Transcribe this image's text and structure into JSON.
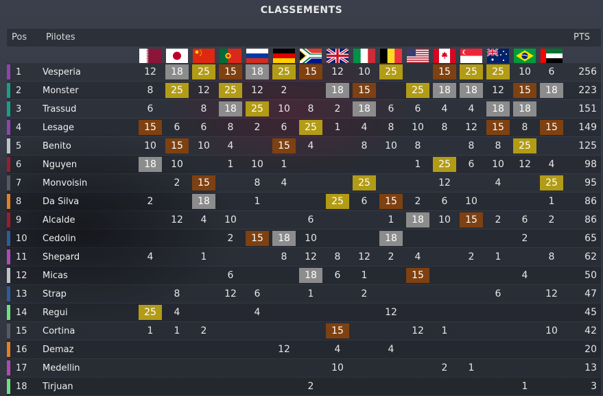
{
  "title": "CLASSEMENTS",
  "headers": {
    "pos": "Pos",
    "driver": "Pilotes",
    "points": "PTS"
  },
  "colors": {
    "gold": "#b29c16",
    "silver": "#8c8c8c",
    "bronze": "#7e4111"
  },
  "flags": [
    "qatar-flag-icon",
    "japan-flag-icon",
    "china-flag-icon",
    "portugal-flag-icon",
    "russia-flag-icon",
    "germany-flag-icon",
    "south-africa-flag-icon",
    "uk-flag-icon",
    "italy-flag-icon",
    "belgium-flag-icon",
    "usa-flag-icon",
    "canada-flag-icon",
    "singapore-flag-icon",
    "australia-flag-icon",
    "brazil-flag-icon",
    "uae-flag-icon"
  ],
  "rows": [
    {
      "pos": "1",
      "name": "Vesperia",
      "team_color": "#8e44ad",
      "pts": "256",
      "results": [
        "12",
        "18",
        "25",
        "15",
        "18",
        "25",
        "15",
        "12",
        "10",
        "25",
        "",
        "15",
        "25",
        "25",
        "10",
        "6"
      ]
    },
    {
      "pos": "2",
      "name": "Monster",
      "team_color": "#16a085",
      "pts": "223",
      "results": [
        "8",
        "25",
        "12",
        "25",
        "12",
        "2",
        "",
        "18",
        "15",
        "",
        "25",
        "18",
        "18",
        "12",
        "15",
        "18"
      ]
    },
    {
      "pos": "3",
      "name": "Trassud",
      "team_color": "#16a085",
      "pts": "151",
      "results": [
        "6",
        "",
        "8",
        "18",
        "25",
        "10",
        "8",
        "2",
        "18",
        "6",
        "6",
        "4",
        "4",
        "18",
        "18",
        ""
      ]
    },
    {
      "pos": "4",
      "name": "Lesage",
      "team_color": "#8e44ad",
      "pts": "149",
      "results": [
        "15",
        "6",
        "6",
        "8",
        "2",
        "6",
        "25",
        "1",
        "4",
        "8",
        "10",
        "8",
        "12",
        "15",
        "8",
        "15"
      ]
    },
    {
      "pos": "5",
      "name": "Benito",
      "team_color": "#bdc3c7",
      "pts": "125",
      "results": [
        "10",
        "15",
        "10",
        "4",
        "",
        "15",
        "4",
        "",
        "8",
        "10",
        "8",
        "",
        "8",
        "8",
        "25",
        ""
      ]
    },
    {
      "pos": "6",
      "name": "Nguyen",
      "team_color": "#9b1c2e",
      "pts": "98",
      "results": [
        "18",
        "10",
        "",
        "1",
        "10",
        "1",
        "",
        "",
        "",
        "",
        "1",
        "25",
        "6",
        "10",
        "12",
        "4"
      ]
    },
    {
      "pos": "7",
      "name": "Monvoisin",
      "team_color": "#555a60",
      "pts": "95",
      "results": [
        "",
        "2",
        "15",
        "",
        "8",
        "4",
        "",
        "",
        "25",
        "",
        "",
        "12",
        "",
        "4",
        "",
        "25"
      ]
    },
    {
      "pos": "8",
      "name": "Da Silva",
      "team_color": "#e67e22",
      "pts": "86",
      "results": [
        "2",
        "",
        "18",
        "",
        "1",
        "",
        "",
        "25",
        "6",
        "15",
        "2",
        "6",
        "10",
        "",
        "",
        "1"
      ]
    },
    {
      "pos": "9",
      "name": "Alcalde",
      "team_color": "#9b1c2e",
      "pts": "86",
      "results": [
        "",
        "12",
        "4",
        "10",
        "",
        "",
        "6",
        "",
        "",
        "1",
        "18",
        "10",
        "15",
        "2",
        "6",
        "2"
      ]
    },
    {
      "pos": "10",
      "name": "Cedolin",
      "team_color": "#2e5c9a",
      "pts": "65",
      "results": [
        "",
        "",
        "",
        "2",
        "15",
        "18",
        "10",
        "",
        "",
        "18",
        "",
        "",
        "",
        "",
        "2",
        ""
      ]
    },
    {
      "pos": "11",
      "name": "Shepard",
      "team_color": "#b04ab0",
      "pts": "62",
      "results": [
        "4",
        "",
        "1",
        "",
        "",
        "8",
        "12",
        "8",
        "12",
        "2",
        "4",
        "",
        "2",
        "1",
        "",
        "8"
      ]
    },
    {
      "pos": "12",
      "name": "Micas",
      "team_color": "#bdc3c7",
      "pts": "50",
      "results": [
        "",
        "",
        "",
        "6",
        "",
        "",
        "18",
        "6",
        "1",
        "",
        "15",
        "",
        "",
        "",
        "4",
        ""
      ]
    },
    {
      "pos": "13",
      "name": "Strap",
      "team_color": "#2e5c9a",
      "pts": "47",
      "results": [
        "",
        "8",
        "",
        "12",
        "6",
        "",
        "1",
        "",
        "2",
        "",
        "",
        "",
        "",
        "6",
        "",
        "12"
      ]
    },
    {
      "pos": "14",
      "name": "Regui",
      "team_color": "#6fe07f",
      "pts": "45",
      "results": [
        "25",
        "4",
        "",
        "",
        "4",
        "",
        "",
        "",
        "",
        "12",
        "",
        "",
        "",
        "",
        "",
        ""
      ]
    },
    {
      "pos": "15",
      "name": "Cortina",
      "team_color": "#555a60",
      "pts": "42",
      "results": [
        "1",
        "1",
        "2",
        "",
        "",
        "",
        "",
        "15",
        "",
        "",
        "12",
        "1",
        "",
        "",
        "",
        "10"
      ]
    },
    {
      "pos": "16",
      "name": "Demaz",
      "team_color": "#e67e22",
      "pts": "20",
      "results": [
        "",
        "",
        "",
        "",
        "",
        "12",
        "",
        "4",
        "",
        "4",
        "",
        "",
        "",
        "",
        "",
        ""
      ]
    },
    {
      "pos": "17",
      "name": "Medellin",
      "team_color": "#b04ab0",
      "pts": "13",
      "results": [
        "",
        "",
        "",
        "",
        "",
        "",
        "",
        "10",
        "",
        "",
        "",
        "2",
        "1",
        "",
        "",
        ""
      ]
    },
    {
      "pos": "18",
      "name": "Tirjuan",
      "team_color": "#6fe07f",
      "pts": "3",
      "results": [
        "",
        "",
        "",
        "",
        "",
        "",
        "2",
        "",
        "",
        "",
        "",
        "",
        "",
        "",
        "1",
        ""
      ]
    }
  ]
}
